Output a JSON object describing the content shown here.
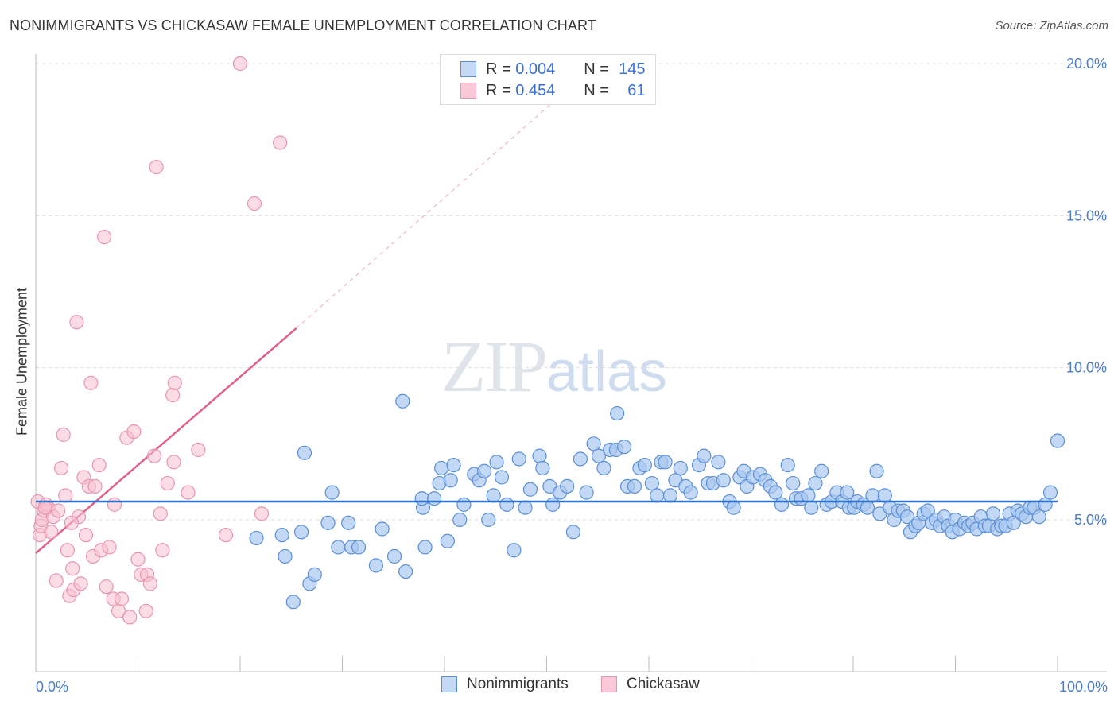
{
  "title": "NONIMMIGRANTS VS CHICKASAW FEMALE UNEMPLOYMENT CORRELATION CHART",
  "source": "Source: ZipAtlas.com",
  "watermark": {
    "zip": "ZIP",
    "atlas": "atlas"
  },
  "legend_top": {
    "r_label": "R =",
    "n_label": "N =",
    "rows": [
      {
        "r": "0.004",
        "n": "145"
      },
      {
        "r": "0.454",
        "n": "61"
      }
    ]
  },
  "legend_bottom": [
    "Nonimmigrants",
    "Chickasaw"
  ],
  "colors": {
    "blue_fill": "#aac8f0",
    "blue_stroke": "#5b8fd6",
    "blue_line": "#2f72c9",
    "pink_fill": "#f7bfd0",
    "pink_stroke": "#e895b0",
    "pink_line": "#e0608c",
    "tick_text": "#4a7cc7",
    "grid": "#dddddd"
  },
  "chart_data": {
    "type": "scatter",
    "title": "NONIMMIGRANTS VS CHICKASAW FEMALE UNEMPLOYMENT CORRELATION CHART",
    "xlabel": "",
    "ylabel": "Female Unemployment",
    "xlim": [
      0,
      100
    ],
    "ylim": [
      0,
      21
    ],
    "x_tick_labels": [
      "0.0%",
      "100.0%"
    ],
    "y_ticks": [
      5,
      10,
      15,
      20
    ],
    "y_tick_labels": [
      "5.0%",
      "10.0%",
      "15.0%",
      "20.0%"
    ],
    "legend": "bottom-center",
    "grid": true,
    "series": [
      {
        "name": "Nonimmigrants",
        "r": 0.004,
        "n": 145,
        "trend": {
          "x": [
            0,
            100
          ],
          "y": [
            5.6,
            5.6
          ]
        },
        "points": [
          [
            21.6,
            4.4
          ],
          [
            24.1,
            4.5
          ],
          [
            24.4,
            3.8
          ],
          [
            25.2,
            2.3
          ],
          [
            26.0,
            4.6
          ],
          [
            26.3,
            7.2
          ],
          [
            26.8,
            2.9
          ],
          [
            27.3,
            3.2
          ],
          [
            29.0,
            5.9
          ],
          [
            28.6,
            4.9
          ],
          [
            29.6,
            4.1
          ],
          [
            30.6,
            4.9
          ],
          [
            30.9,
            4.1
          ],
          [
            31.6,
            4.1
          ],
          [
            33.3,
            3.5
          ],
          [
            33.9,
            4.7
          ],
          [
            35.1,
            3.8
          ],
          [
            36.2,
            3.3
          ],
          [
            35.9,
            8.9
          ],
          [
            37.9,
            5.4
          ],
          [
            37.8,
            5.7
          ],
          [
            38.1,
            4.1
          ],
          [
            39.0,
            5.7
          ],
          [
            39.5,
            6.2
          ],
          [
            39.7,
            6.7
          ],
          [
            40.3,
            4.3
          ],
          [
            40.6,
            6.3
          ],
          [
            40.9,
            6.8
          ],
          [
            41.5,
            5.0
          ],
          [
            41.9,
            5.5
          ],
          [
            42.9,
            6.5
          ],
          [
            43.4,
            6.3
          ],
          [
            43.9,
            6.6
          ],
          [
            44.3,
            5.0
          ],
          [
            44.8,
            5.8
          ],
          [
            45.1,
            6.9
          ],
          [
            45.6,
            6.4
          ],
          [
            46.1,
            5.5
          ],
          [
            46.8,
            4.0
          ],
          [
            47.3,
            7.0
          ],
          [
            47.9,
            5.4
          ],
          [
            48.4,
            6.0
          ],
          [
            49.3,
            7.1
          ],
          [
            49.6,
            6.7
          ],
          [
            50.3,
            6.1
          ],
          [
            50.6,
            5.5
          ],
          [
            51.3,
            5.9
          ],
          [
            52.0,
            6.1
          ],
          [
            52.6,
            4.6
          ],
          [
            53.3,
            7.0
          ],
          [
            53.9,
            5.9
          ],
          [
            54.6,
            7.5
          ],
          [
            55.1,
            7.1
          ],
          [
            55.6,
            6.7
          ],
          [
            56.2,
            7.3
          ],
          [
            56.8,
            7.3
          ],
          [
            56.9,
            8.5
          ],
          [
            57.6,
            7.4
          ],
          [
            57.9,
            6.1
          ],
          [
            58.6,
            6.1
          ],
          [
            59.1,
            6.7
          ],
          [
            59.6,
            6.8
          ],
          [
            60.3,
            6.2
          ],
          [
            60.8,
            5.8
          ],
          [
            61.2,
            6.9
          ],
          [
            61.6,
            6.9
          ],
          [
            62.1,
            5.8
          ],
          [
            62.6,
            6.3
          ],
          [
            63.1,
            6.7
          ],
          [
            63.6,
            6.1
          ],
          [
            64.1,
            5.9
          ],
          [
            64.9,
            6.8
          ],
          [
            65.4,
            7.1
          ],
          [
            65.8,
            6.2
          ],
          [
            66.3,
            6.2
          ],
          [
            66.8,
            6.9
          ],
          [
            67.3,
            6.3
          ],
          [
            67.9,
            5.6
          ],
          [
            68.3,
            5.4
          ],
          [
            68.9,
            6.4
          ],
          [
            69.3,
            6.6
          ],
          [
            69.6,
            6.1
          ],
          [
            70.2,
            6.4
          ],
          [
            70.9,
            6.5
          ],
          [
            71.4,
            6.3
          ],
          [
            71.9,
            6.1
          ],
          [
            72.4,
            5.9
          ],
          [
            73.0,
            5.5
          ],
          [
            73.6,
            6.8
          ],
          [
            74.1,
            6.2
          ],
          [
            74.4,
            5.7
          ],
          [
            74.9,
            5.7
          ],
          [
            75.6,
            5.8
          ],
          [
            75.9,
            5.4
          ],
          [
            76.3,
            6.2
          ],
          [
            76.9,
            6.6
          ],
          [
            77.4,
            5.5
          ],
          [
            77.9,
            5.6
          ],
          [
            78.4,
            5.9
          ],
          [
            78.9,
            5.6
          ],
          [
            79.4,
            5.9
          ],
          [
            79.6,
            5.4
          ],
          [
            80.1,
            5.4
          ],
          [
            80.4,
            5.6
          ],
          [
            81.0,
            5.5
          ],
          [
            81.4,
            5.4
          ],
          [
            81.9,
            5.8
          ],
          [
            82.3,
            6.6
          ],
          [
            82.6,
            5.2
          ],
          [
            83.1,
            5.8
          ],
          [
            83.6,
            5.4
          ],
          [
            84.0,
            5.0
          ],
          [
            84.4,
            5.3
          ],
          [
            84.9,
            5.3
          ],
          [
            85.3,
            5.1
          ],
          [
            85.6,
            4.6
          ],
          [
            86.1,
            4.8
          ],
          [
            86.4,
            4.9
          ],
          [
            86.9,
            5.2
          ],
          [
            87.3,
            5.3
          ],
          [
            87.7,
            4.9
          ],
          [
            88.1,
            5.0
          ],
          [
            88.5,
            4.8
          ],
          [
            88.9,
            5.1
          ],
          [
            89.3,
            4.8
          ],
          [
            89.7,
            4.6
          ],
          [
            90.0,
            5.0
          ],
          [
            90.4,
            4.7
          ],
          [
            90.9,
            4.9
          ],
          [
            91.3,
            4.8
          ],
          [
            91.7,
            4.9
          ],
          [
            92.1,
            4.7
          ],
          [
            92.5,
            5.1
          ],
          [
            92.9,
            4.8
          ],
          [
            93.3,
            4.8
          ],
          [
            93.7,
            5.2
          ],
          [
            94.1,
            4.7
          ],
          [
            94.5,
            4.8
          ],
          [
            94.9,
            4.8
          ],
          [
            95.3,
            5.2
          ],
          [
            95.7,
            4.9
          ],
          [
            96.1,
            5.3
          ],
          [
            96.5,
            5.2
          ],
          [
            96.9,
            5.1
          ],
          [
            97.3,
            5.4
          ],
          [
            97.7,
            5.4
          ],
          [
            98.2,
            5.1
          ],
          [
            98.8,
            5.5
          ],
          [
            99.3,
            5.9
          ],
          [
            100.0,
            7.6
          ]
        ]
      },
      {
        "name": "Chickasaw",
        "r": 0.454,
        "n": 61,
        "trend": {
          "x": [
            0,
            25.5
          ],
          "y": [
            3.9,
            11.3
          ]
        },
        "trend_dashed": {
          "x": [
            25.5,
            50.5
          ],
          "y": [
            11.3,
            18.7
          ]
        },
        "points": [
          [
            0.2,
            5.6
          ],
          [
            0.4,
            4.5
          ],
          [
            0.5,
            4.8
          ],
          [
            0.6,
            5.0
          ],
          [
            0.8,
            5.3
          ],
          [
            1.0,
            5.5
          ],
          [
            1.2,
            5.4
          ],
          [
            1.5,
            4.6
          ],
          [
            1.7,
            5.1
          ],
          [
            2.0,
            3.0
          ],
          [
            2.2,
            5.3
          ],
          [
            2.5,
            6.7
          ],
          [
            2.7,
            7.8
          ],
          [
            2.9,
            5.8
          ],
          [
            3.1,
            4.0
          ],
          [
            3.3,
            2.5
          ],
          [
            3.6,
            3.4
          ],
          [
            3.7,
            2.7
          ],
          [
            4.0,
            11.5
          ],
          [
            4.2,
            5.1
          ],
          [
            4.4,
            2.9
          ],
          [
            4.7,
            6.4
          ],
          [
            4.9,
            4.5
          ],
          [
            5.2,
            6.1
          ],
          [
            5.4,
            9.5
          ],
          [
            5.6,
            3.8
          ],
          [
            5.8,
            6.1
          ],
          [
            6.2,
            6.8
          ],
          [
            6.4,
            4.0
          ],
          [
            6.7,
            14.3
          ],
          [
            6.9,
            2.8
          ],
          [
            7.2,
            4.1
          ],
          [
            7.6,
            2.4
          ],
          [
            7.7,
            5.5
          ],
          [
            8.1,
            2.0
          ],
          [
            8.4,
            2.4
          ],
          [
            8.9,
            7.7
          ],
          [
            9.2,
            1.8
          ],
          [
            9.6,
            7.9
          ],
          [
            10.0,
            3.7
          ],
          [
            10.3,
            3.2
          ],
          [
            10.8,
            2.0
          ],
          [
            10.9,
            3.2
          ],
          [
            11.2,
            2.9
          ],
          [
            11.6,
            7.1
          ],
          [
            11.8,
            16.6
          ],
          [
            12.2,
            5.2
          ],
          [
            12.4,
            4.0
          ],
          [
            13.4,
            9.1
          ],
          [
            13.5,
            6.9
          ],
          [
            13.6,
            9.5
          ],
          [
            14.9,
            5.9
          ],
          [
            15.9,
            7.3
          ],
          [
            18.6,
            4.5
          ],
          [
            21.4,
            15.4
          ],
          [
            20.0,
            20.0
          ],
          [
            22.1,
            5.2
          ],
          [
            23.9,
            17.4
          ],
          [
            0.9,
            5.4
          ],
          [
            3.5,
            4.9
          ],
          [
            12.9,
            6.2
          ]
        ]
      }
    ]
  }
}
